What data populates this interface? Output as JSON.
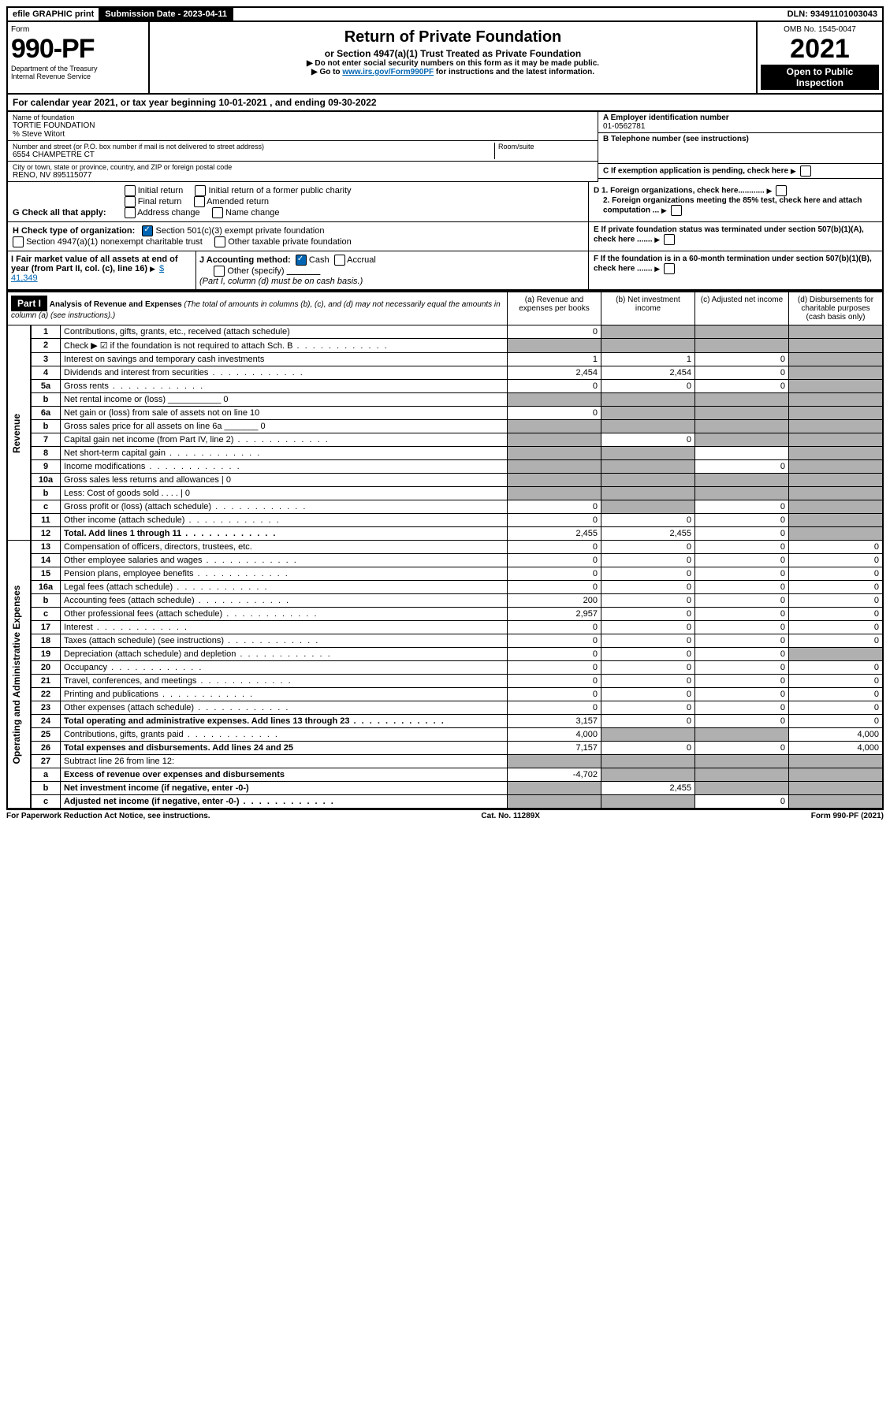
{
  "top_bar": {
    "efile": "efile GRAPHIC print",
    "submission": "Submission Date - 2023-04-11",
    "dln": "DLN: 93491101003043"
  },
  "header": {
    "form_label": "Form",
    "form_num": "990-PF",
    "dept": "Department of the Treasury\nInternal Revenue Service",
    "title": "Return of Private Foundation",
    "subtitle": "or Section 4947(a)(1) Trust Treated as Private Foundation",
    "note1": "▶ Do not enter social security numbers on this form as it may be made public.",
    "note2_pre": "▶ Go to ",
    "note2_link": "www.irs.gov/Form990PF",
    "note2_post": " for instructions and the latest information.",
    "omb": "OMB No. 1545-0047",
    "year": "2021",
    "open": "Open to Public Inspection"
  },
  "cal": "For calendar year 2021, or tax year beginning 10-01-2021                , and ending 09-30-2022",
  "info": {
    "name_lbl": "Name of foundation",
    "name": "TORTIE FOUNDATION",
    "pct": "% Steve Witort",
    "addr_lbl": "Number and street (or P.O. box number if mail is not delivered to street address)",
    "addr": "6554 CHAMPETRE CT",
    "room_lbl": "Room/suite",
    "city_lbl": "City or town, state or province, country, and ZIP or foreign postal code",
    "city": "RENO, NV  895115077",
    "a_lbl": "A Employer identification number",
    "a_val": "01-0562781",
    "b_lbl": "B Telephone number (see instructions)",
    "c_lbl": "C If exemption application is pending, check here",
    "d1_lbl": "D 1. Foreign organizations, check here............",
    "d2_lbl": "2. Foreign organizations meeting the 85% test, check here and attach computation ...",
    "e_lbl": "E If private foundation status was terminated under section 507(b)(1)(A), check here .......",
    "f_lbl": "F If the foundation is in a 60-month termination under section 507(b)(1)(B), check here ......."
  },
  "g": {
    "label": "G Check all that apply:",
    "opts": [
      "Initial return",
      "Final return",
      "Address change",
      "Initial return of a former public charity",
      "Amended return",
      "Name change"
    ]
  },
  "h": {
    "label": "H Check type of organization:",
    "o1": "Section 501(c)(3) exempt private foundation",
    "o2": "Section 4947(a)(1) nonexempt charitable trust",
    "o3": "Other taxable private foundation"
  },
  "i": {
    "label": "I Fair market value of all assets at end of year (from Part II, col. (c), line 16)",
    "val": "$  41,349"
  },
  "j": {
    "label": "J Accounting method:",
    "o1": "Cash",
    "o2": "Accrual",
    "o3": "Other (specify)",
    "note": "(Part I, column (d) must be on cash basis.)"
  },
  "part1": {
    "label": "Part I",
    "title": "Analysis of Revenue and Expenses",
    "sub": "(The total of amounts in columns (b), (c), and (d) may not necessarily equal the amounts in column (a) (see instructions).)",
    "cols": {
      "a": "(a) Revenue and expenses per books",
      "b": "(b) Net investment income",
      "c": "(c) Adjusted net income",
      "d": "(d) Disbursements for charitable purposes (cash basis only)"
    }
  },
  "sections": {
    "revenue": "Revenue",
    "expenses": "Operating and Administrative Expenses"
  },
  "rows": [
    {
      "n": "1",
      "d": "Contributions, gifts, grants, etc., received (attach schedule)",
      "a": "0",
      "b": "",
      "c": "",
      "dd": "",
      "ga": false,
      "gb": true,
      "gc": true,
      "gd": true
    },
    {
      "n": "2",
      "d": "Check ▶ ☑ if the foundation is not required to attach Sch. B",
      "a": "",
      "b": "",
      "c": "",
      "dd": "",
      "ga": true,
      "gb": true,
      "gc": true,
      "gd": true,
      "dots": true
    },
    {
      "n": "3",
      "d": "Interest on savings and temporary cash investments",
      "a": "1",
      "b": "1",
      "c": "0",
      "dd": "",
      "ga": false,
      "gb": false,
      "gc": false,
      "gd": true
    },
    {
      "n": "4",
      "d": "Dividends and interest from securities",
      "a": "2,454",
      "b": "2,454",
      "c": "0",
      "dd": "",
      "ga": false,
      "gb": false,
      "gc": false,
      "gd": true,
      "dots": true
    },
    {
      "n": "5a",
      "d": "Gross rents",
      "a": "0",
      "b": "0",
      "c": "0",
      "dd": "",
      "ga": false,
      "gb": false,
      "gc": false,
      "gd": true,
      "dots": true
    },
    {
      "n": "b",
      "d": "Net rental income or (loss) ___________ 0",
      "a": "",
      "b": "",
      "c": "",
      "dd": "",
      "ga": true,
      "gb": true,
      "gc": true,
      "gd": true
    },
    {
      "n": "6a",
      "d": "Net gain or (loss) from sale of assets not on line 10",
      "a": "0",
      "b": "",
      "c": "",
      "dd": "",
      "ga": false,
      "gb": true,
      "gc": true,
      "gd": true
    },
    {
      "n": "b",
      "d": "Gross sales price for all assets on line 6a _______ 0",
      "a": "",
      "b": "",
      "c": "",
      "dd": "",
      "ga": true,
      "gb": true,
      "gc": true,
      "gd": true
    },
    {
      "n": "7",
      "d": "Capital gain net income (from Part IV, line 2)",
      "a": "",
      "b": "0",
      "c": "",
      "dd": "",
      "ga": true,
      "gb": false,
      "gc": true,
      "gd": true,
      "dots": true
    },
    {
      "n": "8",
      "d": "Net short-term capital gain",
      "a": "",
      "b": "",
      "c": "",
      "dd": "",
      "ga": true,
      "gb": true,
      "gc": false,
      "gd": true,
      "dots": true
    },
    {
      "n": "9",
      "d": "Income modifications",
      "a": "",
      "b": "",
      "c": "0",
      "dd": "",
      "ga": true,
      "gb": true,
      "gc": false,
      "gd": true,
      "dots": true
    },
    {
      "n": "10a",
      "d": "Gross sales less returns and allowances | 0",
      "a": "",
      "b": "",
      "c": "",
      "dd": "",
      "ga": true,
      "gb": true,
      "gc": true,
      "gd": true
    },
    {
      "n": "b",
      "d": "Less: Cost of goods sold     . . . .  | 0",
      "a": "",
      "b": "",
      "c": "",
      "dd": "",
      "ga": true,
      "gb": true,
      "gc": true,
      "gd": true
    },
    {
      "n": "c",
      "d": "Gross profit or (loss) (attach schedule)",
      "a": "0",
      "b": "",
      "c": "0",
      "dd": "",
      "ga": false,
      "gb": true,
      "gc": false,
      "gd": true,
      "dots": true
    },
    {
      "n": "11",
      "d": "Other income (attach schedule)",
      "a": "0",
      "b": "0",
      "c": "0",
      "dd": "",
      "ga": false,
      "gb": false,
      "gc": false,
      "gd": true,
      "dots": true
    },
    {
      "n": "12",
      "d": "Total. Add lines 1 through 11",
      "a": "2,455",
      "b": "2,455",
      "c": "0",
      "dd": "",
      "ga": false,
      "gb": false,
      "gc": false,
      "gd": true,
      "bold": true,
      "dots": true
    },
    {
      "n": "13",
      "d": "Compensation of officers, directors, trustees, etc.",
      "a": "0",
      "b": "0",
      "c": "0",
      "dd": "0",
      "sec": "e"
    },
    {
      "n": "14",
      "d": "Other employee salaries and wages",
      "a": "0",
      "b": "0",
      "c": "0",
      "dd": "0",
      "sec": "e",
      "dots": true
    },
    {
      "n": "15",
      "d": "Pension plans, employee benefits",
      "a": "0",
      "b": "0",
      "c": "0",
      "dd": "0",
      "sec": "e",
      "dots": true
    },
    {
      "n": "16a",
      "d": "Legal fees (attach schedule)",
      "a": "0",
      "b": "0",
      "c": "0",
      "dd": "0",
      "sec": "e",
      "dots": true
    },
    {
      "n": "b",
      "d": "Accounting fees (attach schedule)",
      "a": "200",
      "b": "0",
      "c": "0",
      "dd": "0",
      "sec": "e",
      "dots": true
    },
    {
      "n": "c",
      "d": "Other professional fees (attach schedule)",
      "a": "2,957",
      "b": "0",
      "c": "0",
      "dd": "0",
      "sec": "e",
      "dots": true
    },
    {
      "n": "17",
      "d": "Interest",
      "a": "0",
      "b": "0",
      "c": "0",
      "dd": "0",
      "sec": "e",
      "dots": true
    },
    {
      "n": "18",
      "d": "Taxes (attach schedule) (see instructions)",
      "a": "0",
      "b": "0",
      "c": "0",
      "dd": "0",
      "sec": "e",
      "dots": true
    },
    {
      "n": "19",
      "d": "Depreciation (attach schedule) and depletion",
      "a": "0",
      "b": "0",
      "c": "0",
      "dd": "",
      "sec": "e",
      "gd": true,
      "dots": true
    },
    {
      "n": "20",
      "d": "Occupancy",
      "a": "0",
      "b": "0",
      "c": "0",
      "dd": "0",
      "sec": "e",
      "dots": true
    },
    {
      "n": "21",
      "d": "Travel, conferences, and meetings",
      "a": "0",
      "b": "0",
      "c": "0",
      "dd": "0",
      "sec": "e",
      "dots": true
    },
    {
      "n": "22",
      "d": "Printing and publications",
      "a": "0",
      "b": "0",
      "c": "0",
      "dd": "0",
      "sec": "e",
      "dots": true
    },
    {
      "n": "23",
      "d": "Other expenses (attach schedule)",
      "a": "0",
      "b": "0",
      "c": "0",
      "dd": "0",
      "sec": "e",
      "dots": true
    },
    {
      "n": "24",
      "d": "Total operating and administrative expenses. Add lines 13 through 23",
      "a": "3,157",
      "b": "0",
      "c": "0",
      "dd": "0",
      "sec": "e",
      "bold": true,
      "dots": true
    },
    {
      "n": "25",
      "d": "Contributions, gifts, grants paid",
      "a": "4,000",
      "b": "",
      "c": "",
      "dd": "4,000",
      "sec": "e",
      "gb": true,
      "gc": true,
      "dots": true
    },
    {
      "n": "26",
      "d": "Total expenses and disbursements. Add lines 24 and 25",
      "a": "7,157",
      "b": "0",
      "c": "0",
      "dd": "4,000",
      "sec": "e",
      "bold": true
    },
    {
      "n": "27",
      "d": "Subtract line 26 from line 12:",
      "a": "",
      "b": "",
      "c": "",
      "dd": "",
      "sec": "e",
      "ga": true,
      "gb": true,
      "gc": true,
      "gd": true
    },
    {
      "n": "a",
      "d": "Excess of revenue over expenses and disbursements",
      "a": "-4,702",
      "b": "",
      "c": "",
      "dd": "",
      "sec": "e",
      "bold": true,
      "gb": true,
      "gc": true,
      "gd": true
    },
    {
      "n": "b",
      "d": "Net investment income (if negative, enter -0-)",
      "a": "",
      "b": "2,455",
      "c": "",
      "dd": "",
      "sec": "e",
      "bold": true,
      "ga": true,
      "gc": true,
      "gd": true
    },
    {
      "n": "c",
      "d": "Adjusted net income (if negative, enter -0-)",
      "a": "",
      "b": "",
      "c": "0",
      "dd": "",
      "sec": "e",
      "bold": true,
      "ga": true,
      "gb": true,
      "gd": true,
      "dots": true
    }
  ],
  "footer": {
    "left": "For Paperwork Reduction Act Notice, see instructions.",
    "mid": "Cat. No. 11289X",
    "right": "Form 990-PF (2021)"
  }
}
